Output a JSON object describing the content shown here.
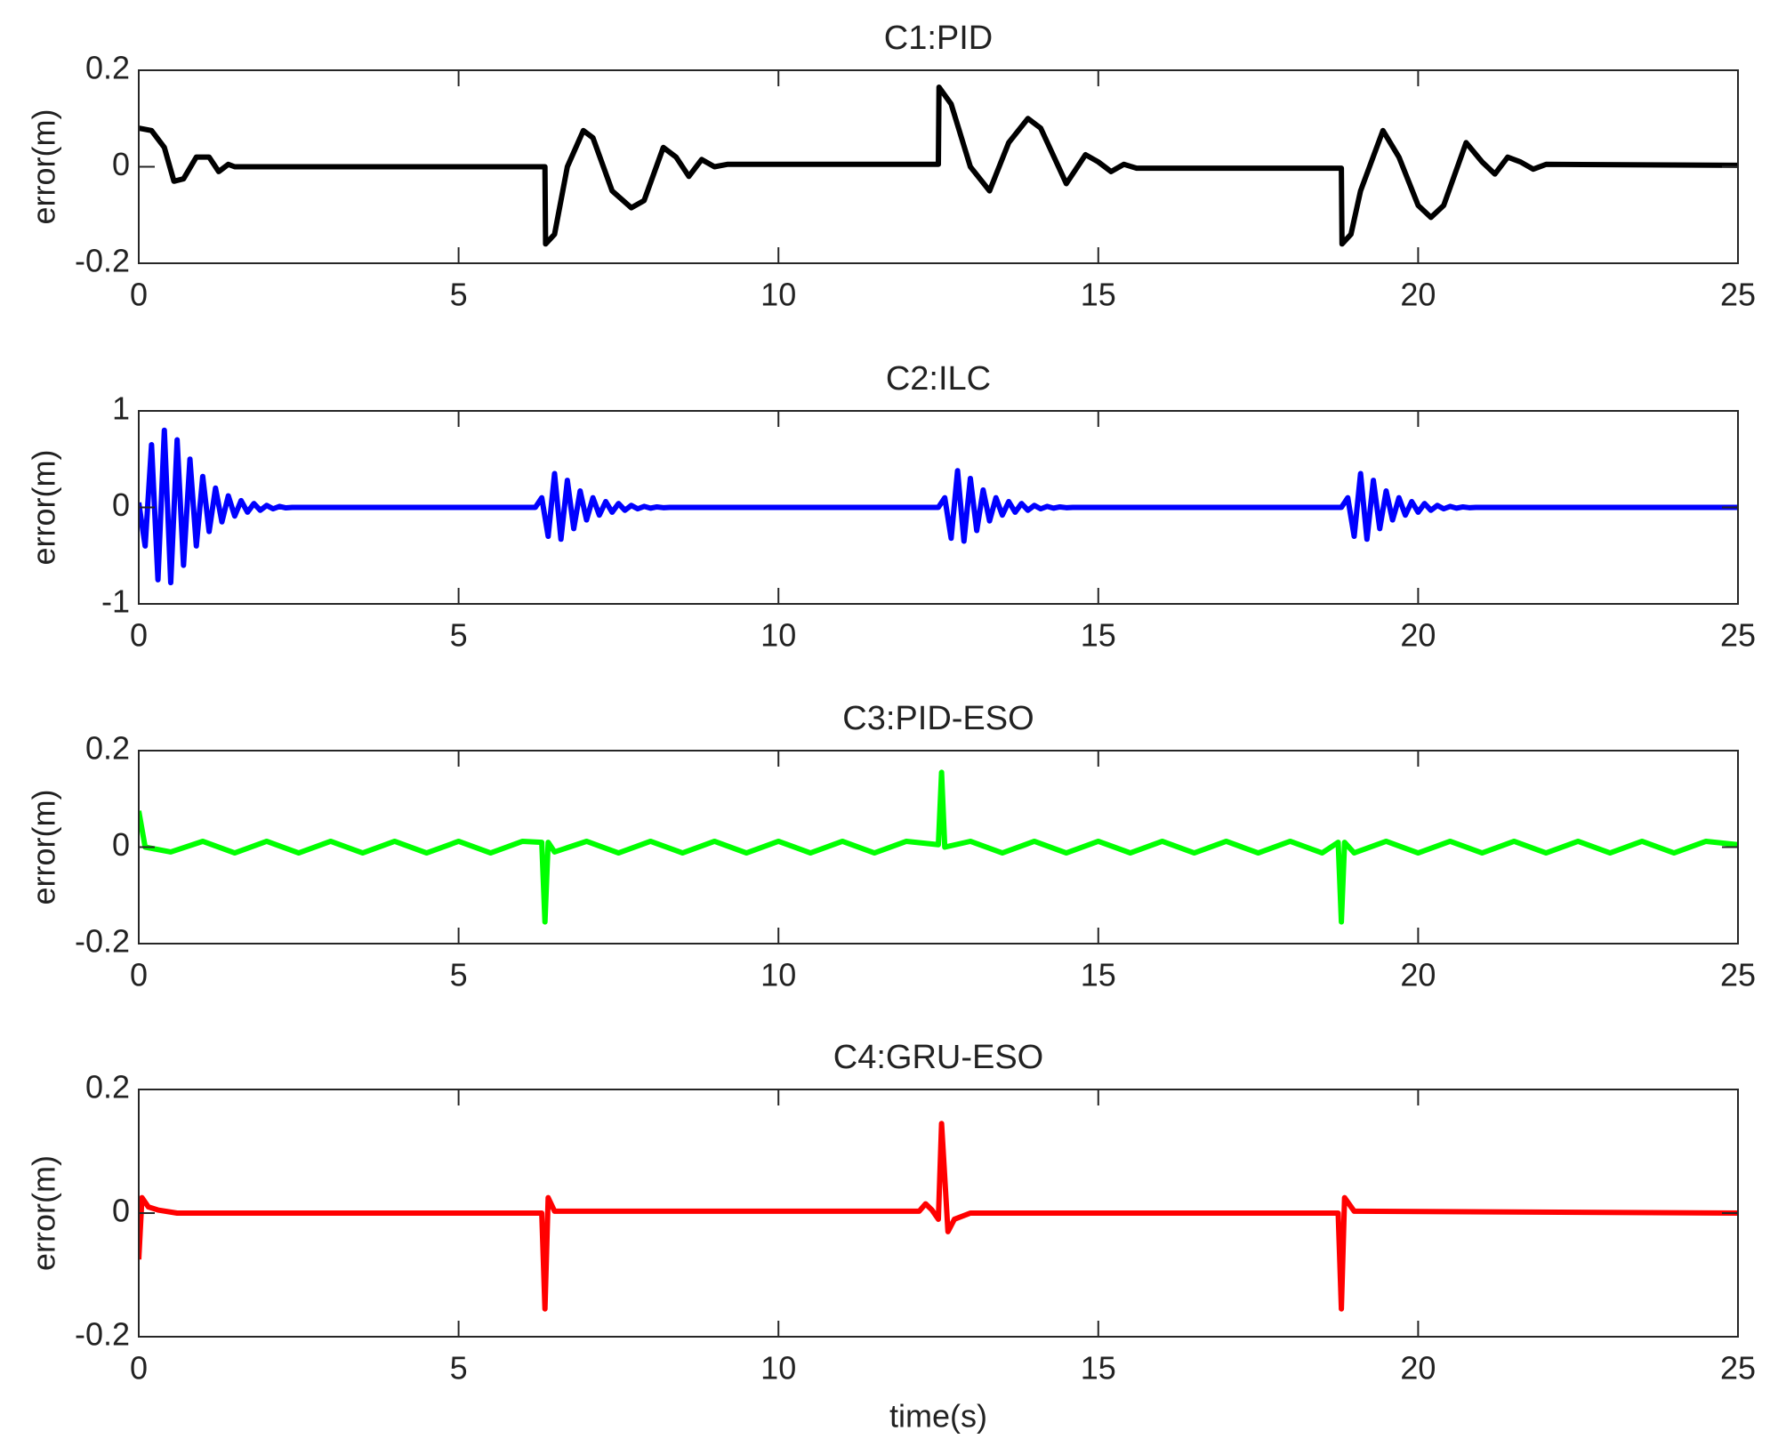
{
  "chart_data": [
    {
      "type": "line",
      "title": "C1:PID",
      "ylabel": "error(m)",
      "color": "#000000",
      "xlim": [
        0,
        25
      ],
      "xticks": [
        0,
        5,
        10,
        15,
        20,
        25
      ],
      "ylim": [
        -0.2,
        0.2
      ],
      "yticks": [
        -0.2,
        0,
        0.2
      ],
      "x": [
        0,
        0.2,
        0.4,
        0.55,
        0.7,
        0.9,
        1.1,
        1.25,
        1.4,
        1.5,
        3,
        6.35,
        6.36,
        6.5,
        6.7,
        6.95,
        7.1,
        7.4,
        7.7,
        7.9,
        8.2,
        8.4,
        8.6,
        8.8,
        9.0,
        9.2,
        12.5,
        12.51,
        12.7,
        13.0,
        13.3,
        13.6,
        13.9,
        14.1,
        14.5,
        14.8,
        15.0,
        15.2,
        15.4,
        15.6,
        18.8,
        18.81,
        18.95,
        19.1,
        19.45,
        19.7,
        20.0,
        20.2,
        20.4,
        20.75,
        21.0,
        21.2,
        21.4,
        21.6,
        21.8,
        22.0,
        25
      ],
      "values": [
        0.08,
        0.075,
        0.04,
        -0.03,
        -0.025,
        0.02,
        0.02,
        -0.01,
        0.005,
        0,
        0,
        0,
        -0.16,
        -0.14,
        0,
        0.075,
        0.06,
        -0.05,
        -0.085,
        -0.07,
        0.04,
        0.02,
        -0.02,
        0.015,
        0,
        0.005,
        0.005,
        0.165,
        0.13,
        0,
        -0.05,
        0.05,
        0.1,
        0.08,
        -0.035,
        0.025,
        0.01,
        -0.01,
        0.005,
        -0.003,
        -0.003,
        -0.16,
        -0.14,
        -0.05,
        0.075,
        0.02,
        -0.08,
        -0.105,
        -0.08,
        0.05,
        0.01,
        -0.015,
        0.02,
        0.01,
        -0.005,
        0.005,
        0.003
      ]
    },
    {
      "type": "line",
      "title": "C2:ILC",
      "ylabel": "error(m)",
      "color": "#0000ff",
      "xlim": [
        0,
        25
      ],
      "xticks": [
        0,
        5,
        10,
        15,
        20,
        25
      ],
      "ylim": [
        -1,
        1
      ],
      "yticks": [
        -1,
        0,
        1
      ],
      "x": [
        0,
        0.1,
        0.2,
        0.3,
        0.4,
        0.5,
        0.6,
        0.7,
        0.8,
        0.9,
        1.0,
        1.1,
        1.2,
        1.3,
        1.4,
        1.5,
        1.6,
        1.7,
        1.8,
        1.9,
        2.0,
        2.1,
        2.2,
        2.3,
        2.4,
        2.5,
        6.2,
        6.3,
        6.4,
        6.5,
        6.6,
        6.7,
        6.8,
        6.9,
        7.0,
        7.1,
        7.2,
        7.3,
        7.4,
        7.5,
        7.6,
        7.7,
        7.8,
        7.9,
        8.0,
        8.1,
        8.2,
        8.3,
        12.5,
        12.6,
        12.7,
        12.8,
        12.9,
        13.0,
        13.1,
        13.2,
        13.3,
        13.4,
        13.5,
        13.6,
        13.7,
        13.8,
        13.9,
        14.0,
        14.1,
        14.2,
        14.3,
        14.4,
        14.5,
        14.6,
        18.8,
        18.9,
        19.0,
        19.1,
        19.2,
        19.3,
        19.4,
        19.5,
        19.6,
        19.7,
        19.8,
        19.9,
        20.0,
        20.1,
        20.2,
        20.3,
        20.4,
        20.5,
        20.6,
        20.7,
        20.8,
        20.9,
        25
      ],
      "values": [
        0.05,
        -0.4,
        0.65,
        -0.75,
        0.8,
        -0.78,
        0.7,
        -0.6,
        0.5,
        -0.4,
        0.32,
        -0.25,
        0.2,
        -0.15,
        0.12,
        -0.09,
        0.07,
        -0.05,
        0.04,
        -0.03,
        0.02,
        -0.015,
        0.01,
        -0.005,
        0,
        0,
        0,
        0.1,
        -0.3,
        0.35,
        -0.33,
        0.28,
        -0.22,
        0.17,
        -0.13,
        0.1,
        -0.08,
        0.06,
        -0.05,
        0.04,
        -0.03,
        0.02,
        -0.015,
        0.01,
        -0.008,
        0.005,
        -0.003,
        0,
        0,
        0.1,
        -0.32,
        0.38,
        -0.35,
        0.3,
        -0.24,
        0.18,
        -0.14,
        0.1,
        -0.08,
        0.06,
        -0.05,
        0.04,
        -0.03,
        0.02,
        -0.015,
        0.01,
        -0.008,
        0.005,
        -0.003,
        0,
        0,
        0.1,
        -0.3,
        0.35,
        -0.33,
        0.28,
        -0.22,
        0.17,
        -0.13,
        0.1,
        -0.08,
        0.06,
        -0.05,
        0.04,
        -0.03,
        0.02,
        -0.015,
        0.01,
        -0.008,
        0.005,
        -0.003,
        0,
        0
      ]
    },
    {
      "type": "line",
      "title": "C3:PID-ESO",
      "ylabel": "error(m)",
      "color": "#00ff00",
      "xlim": [
        0,
        25
      ],
      "xticks": [
        0,
        5,
        10,
        15,
        20,
        25
      ],
      "ylim": [
        -0.2,
        0.2
      ],
      "yticks": [
        -0.2,
        0,
        0.2
      ],
      "x": [
        0,
        0.1,
        0.5,
        1,
        1.5,
        2,
        2.5,
        3,
        3.5,
        4,
        4.5,
        5,
        5.5,
        6,
        6.3,
        6.35,
        6.4,
        6.5,
        7,
        7.5,
        8,
        8.5,
        9,
        9.5,
        10,
        10.5,
        11,
        11.5,
        12,
        12.5,
        12.55,
        12.6,
        13,
        13.5,
        14,
        14.5,
        15,
        15.5,
        16,
        16.5,
        17,
        17.5,
        18,
        18.5,
        18.75,
        18.8,
        18.85,
        19,
        19.5,
        20,
        20.5,
        21,
        21.5,
        22,
        22.5,
        23,
        23.5,
        24,
        24.5,
        25
      ],
      "values": [
        0.075,
        0,
        -0.01,
        0.012,
        -0.012,
        0.012,
        -0.012,
        0.012,
        -0.012,
        0.012,
        -0.012,
        0.012,
        -0.012,
        0.012,
        0.01,
        -0.155,
        0.01,
        -0.01,
        0.012,
        -0.012,
        0.012,
        -0.012,
        0.012,
        -0.012,
        0.012,
        -0.012,
        0.012,
        -0.012,
        0.012,
        0.005,
        0.155,
        0,
        0.012,
        -0.012,
        0.012,
        -0.012,
        0.012,
        -0.012,
        0.012,
        -0.012,
        0.012,
        -0.012,
        0.012,
        -0.012,
        0.01,
        -0.155,
        0.01,
        -0.012,
        0.012,
        -0.012,
        0.012,
        -0.012,
        0.012,
        -0.012,
        0.012,
        -0.012,
        0.012,
        -0.012,
        0.012,
        0.005
      ]
    },
    {
      "type": "line",
      "title": "C4:GRU-ESO",
      "ylabel": "error(m)",
      "xlabel": "time(s)",
      "color": "#ff0000",
      "xlim": [
        0,
        25
      ],
      "xticks": [
        0,
        5,
        10,
        15,
        20,
        25
      ],
      "ylim": [
        -0.2,
        0.2
      ],
      "yticks": [
        -0.2,
        0,
        0.2
      ],
      "x": [
        0,
        0.05,
        0.15,
        0.3,
        0.6,
        6.3,
        6.35,
        6.4,
        6.5,
        12.2,
        12.3,
        12.4,
        12.5,
        12.55,
        12.65,
        12.75,
        13,
        18.75,
        18.8,
        18.85,
        19,
        25
      ],
      "values": [
        -0.075,
        0.025,
        0.01,
        0.005,
        0,
        0,
        -0.155,
        0.025,
        0.003,
        0.003,
        0.015,
        0.005,
        -0.01,
        0.145,
        -0.03,
        -0.01,
        0,
        0,
        -0.155,
        0.025,
        0.003,
        0
      ]
    }
  ]
}
